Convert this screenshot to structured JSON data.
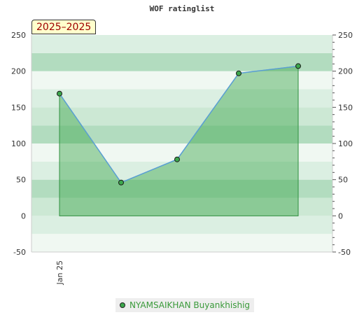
{
  "chart_data": {
    "type": "area",
    "title": "WOF ratinglist",
    "period_label": "2025–2025",
    "x_tick_labels": [
      "Jan 25"
    ],
    "ylim": [
      -50,
      250
    ],
    "y_ticks": [
      -50,
      0,
      50,
      100,
      150,
      200,
      250
    ],
    "grid": true,
    "legend_position": "bottom",
    "series": [
      {
        "name": "NYAMSAIKHAN Buyankhishig",
        "values": [
          169,
          46,
          78,
          197,
          207
        ]
      }
    ],
    "colors": {
      "fill": "#3ca74c",
      "line": "#5a9fd4",
      "marker": "#3ca74c",
      "band_dark": "#b2dcbf",
      "band_mid": "#cce8d4",
      "band_light": "#f0f8f2",
      "band_mid2": "#dbefe2"
    }
  }
}
